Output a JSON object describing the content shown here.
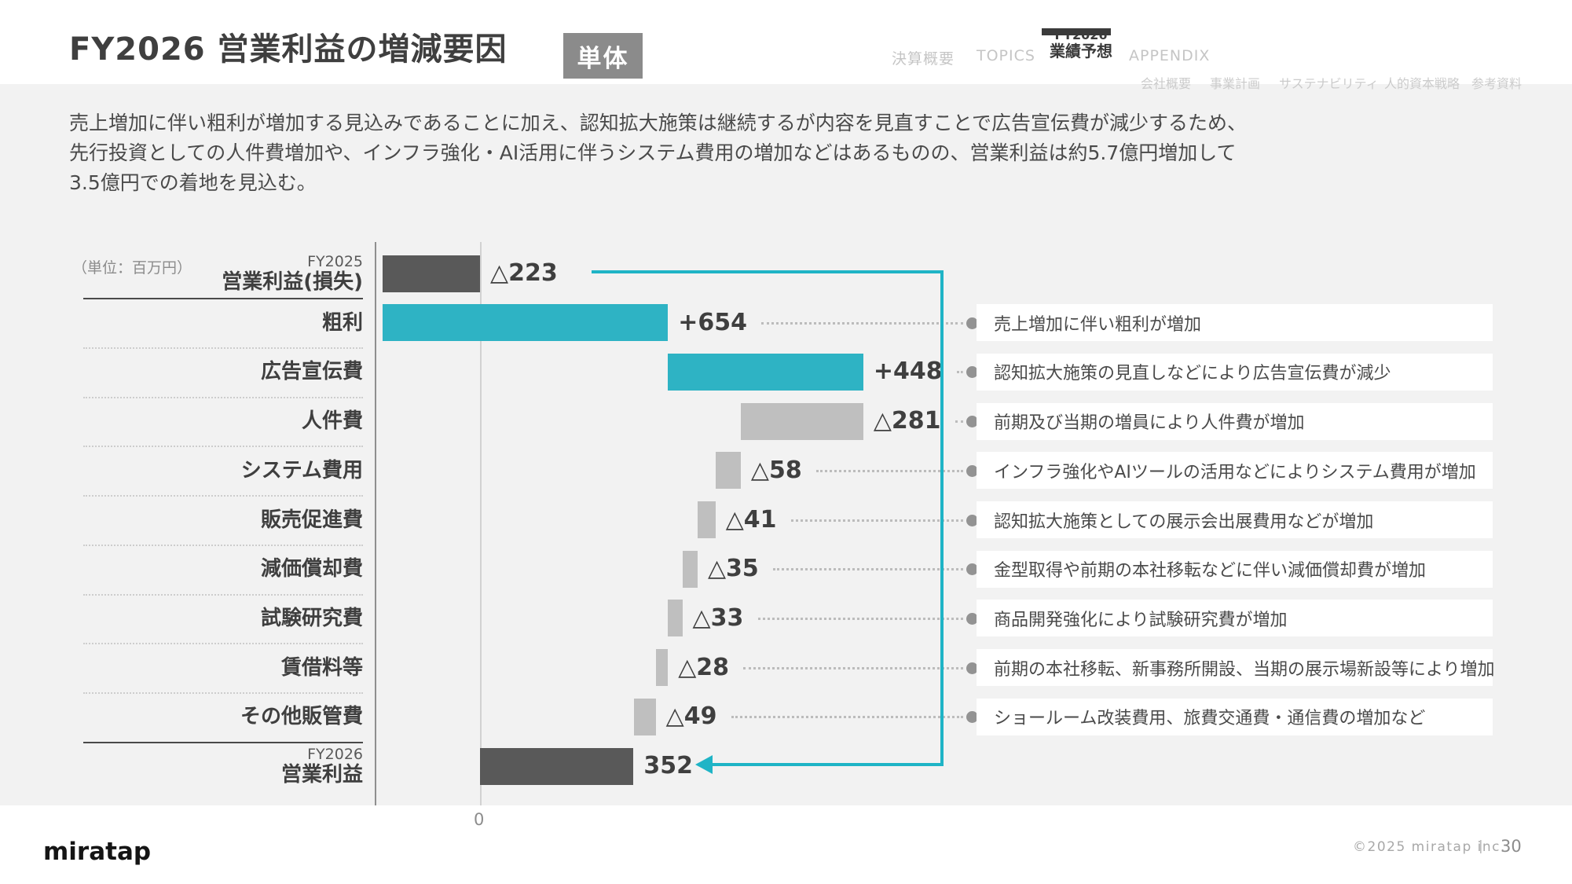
{
  "header": {
    "title": "FY2026 営業利益の増減要因",
    "badge": "単体",
    "nav": [
      {
        "label": "決算概要"
      },
      {
        "label": "TOPICS"
      },
      {
        "label_line1": "FY2026",
        "label_line2": "業績予想",
        "active": true
      },
      {
        "label": "APPENDIX"
      }
    ],
    "subnav": [
      {
        "label": "会社概要"
      },
      {
        "label": "事業計画"
      },
      {
        "label": "サステナビリティ"
      },
      {
        "label": "人的資本戦略"
      },
      {
        "label": "参考資料"
      }
    ]
  },
  "summary": {
    "line1": "売上増加に伴い粗利が増加する見込みであることに加え、認知拡大施策は継続するが内容を見直すことで広告宣伝費が減少するため、",
    "line2": "先行投資としての人件費増加や、インフラ強化・AI活用に伴うシステム費用の増加などはあるものの、営業利益は約5.7億円増加して",
    "line3": "3.5億円での着地を見込む。"
  },
  "chart_data": {
    "type": "bar",
    "subtype": "waterfall-horizontal",
    "unit_label": "（単位：百万円）",
    "zero_label": "0",
    "axis": {
      "min": -250,
      "max": 1060,
      "zero": 0
    },
    "colors": {
      "increase": "#2EB3C4",
      "decrease": "#BFBFBF",
      "total": "#595959",
      "arrow": "#1FB4C6"
    },
    "rows": [
      {
        "label_small": "FY2025",
        "label": "営業利益(損失)",
        "value": -223,
        "value_label": "△223",
        "from": -223,
        "to": 0,
        "color": "dark",
        "note": null
      },
      {
        "label": "粗利",
        "value": 654,
        "value_label": "+654",
        "from": -223,
        "to": 431,
        "color": "teal",
        "note": "売上増加に伴い粗利が増加"
      },
      {
        "label": "広告宣伝費",
        "value": 448,
        "value_label": "+448",
        "from": 431,
        "to": 879,
        "color": "teal",
        "note": "認知拡大施策の見直しなどにより広告宣伝費が減少"
      },
      {
        "label": "人件費",
        "value": -281,
        "value_label": "△281",
        "from": 879,
        "to": 598,
        "color": "gray",
        "note": "前期及び当期の増員により人件費が増加"
      },
      {
        "label": "システム費用",
        "value": -58,
        "value_label": "△58",
        "from": 598,
        "to": 540,
        "color": "gray",
        "note": "インフラ強化やAIツールの活用などによりシステム費用が増加"
      },
      {
        "label": "販売促進費",
        "value": -41,
        "value_label": "△41",
        "from": 540,
        "to": 499,
        "color": "gray",
        "note": "認知拡大施策としての展示会出展費用などが増加"
      },
      {
        "label": "減価償却費",
        "value": -35,
        "value_label": "△35",
        "from": 499,
        "to": 464,
        "color": "gray",
        "note": "金型取得や前期の本社移転などに伴い減価償却費が増加"
      },
      {
        "label": "試験研究費",
        "value": -33,
        "value_label": "△33",
        "from": 464,
        "to": 431,
        "color": "gray",
        "note": "商品開発強化により試験研究費が増加"
      },
      {
        "label": "賃借料等",
        "value": -28,
        "value_label": "△28",
        "from": 431,
        "to": 403,
        "color": "gray",
        "note": "前期の本社移転、新事務所開設、当期の展示場新設等により増加"
      },
      {
        "label": "その他販管費",
        "value": -49,
        "value_label": "△49",
        "from": 403,
        "to": 354,
        "color": "gray",
        "note": "ショールーム改装費用、旅費交通費・通信費の増加など"
      },
      {
        "label_small": "FY2026",
        "label": "営業利益",
        "value": 352,
        "value_label": "352",
        "from": 0,
        "to": 352,
        "color": "dark",
        "note": null
      }
    ]
  },
  "footer": {
    "logo": "miratap",
    "copyright": "©2025 miratap inc.",
    "divider": "|",
    "page": "30"
  }
}
